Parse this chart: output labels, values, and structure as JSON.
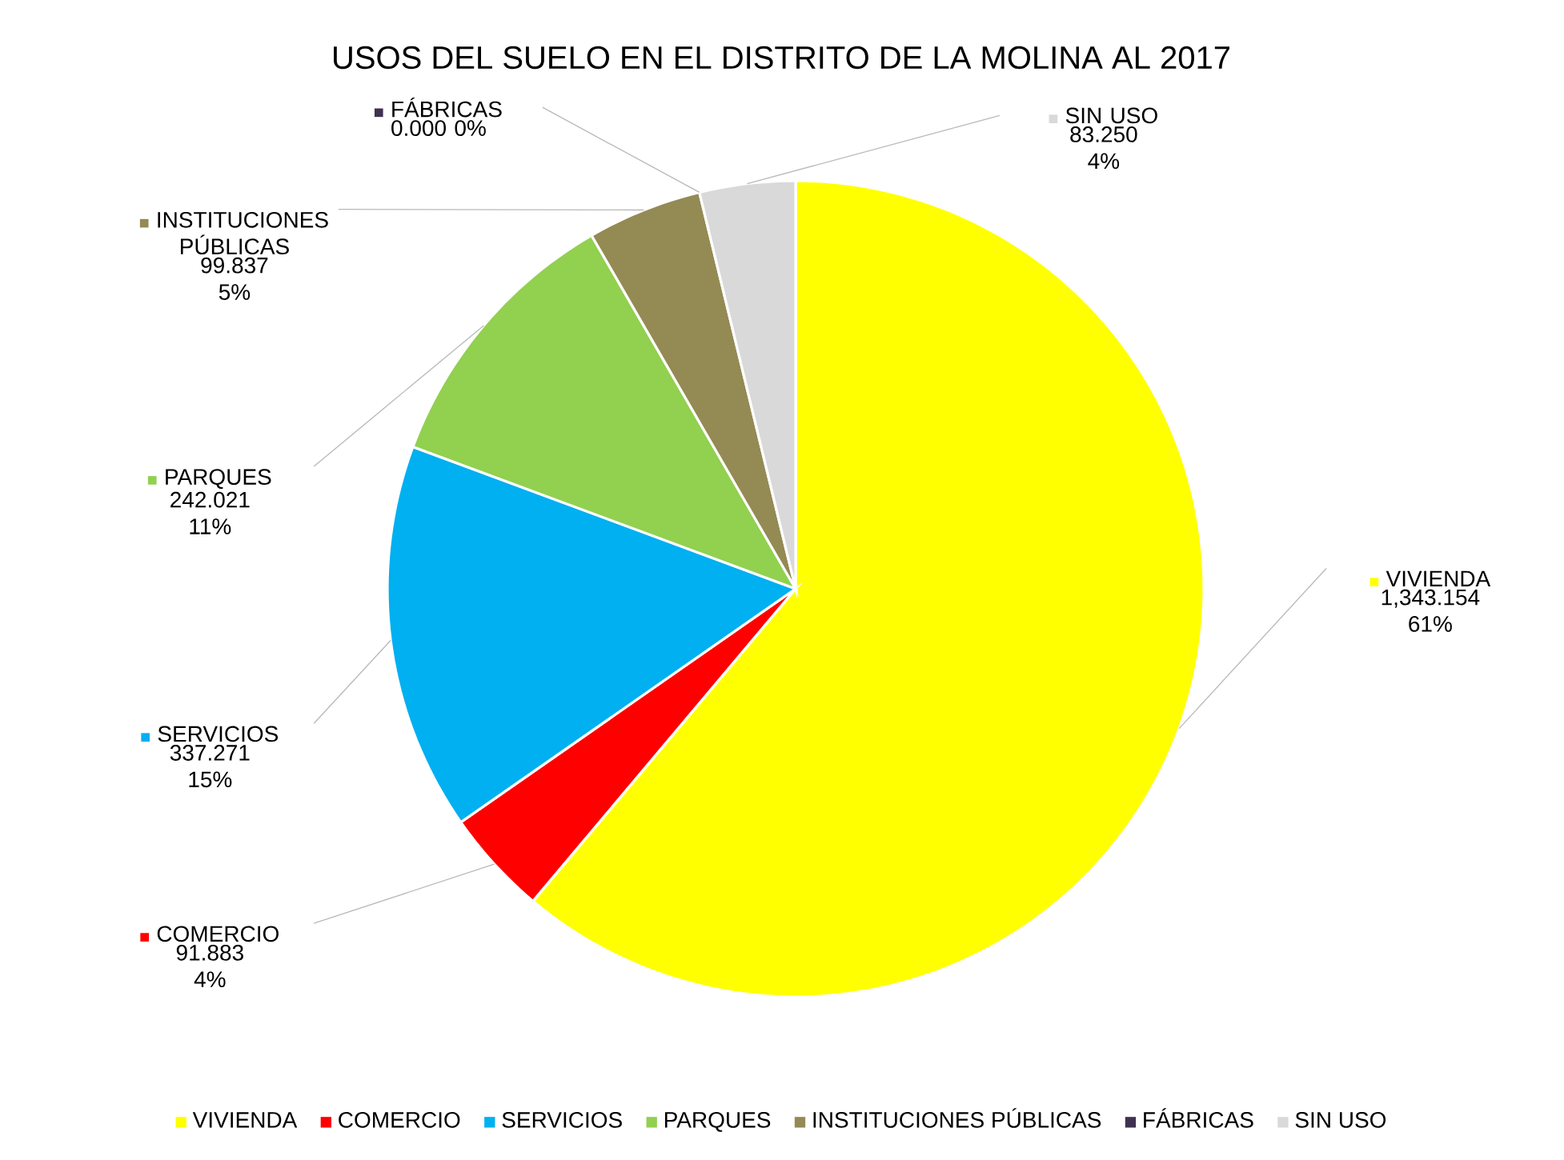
{
  "chart_data": {
    "type": "pie",
    "title": "USOS DEL SUELO EN EL DISTRITO  DE LA MOLINA AL 2017",
    "categories": [
      "VIVIENDA",
      "COMERCIO",
      "SERVICIOS",
      "PARQUES",
      "INSTITUCIONES  PÚBLICAS",
      "FÁBRICAS",
      "SIN USO"
    ],
    "values": [
      1343.154,
      91.883,
      337.271,
      242.021,
      99.837,
      0.0,
      83.25
    ],
    "value_labels": [
      "1,343.154 61%",
      "91.883 4%",
      "337.271 15%",
      "242.021 11%",
      "99.837 5%",
      "0.000 0%",
      "83.250 4%"
    ],
    "colors": [
      "#ffff00",
      "#ff0000",
      "#00b0f0",
      "#92d050",
      "#948a54",
      "#403151",
      "#d9d9d9"
    ],
    "legend": "bottom"
  }
}
